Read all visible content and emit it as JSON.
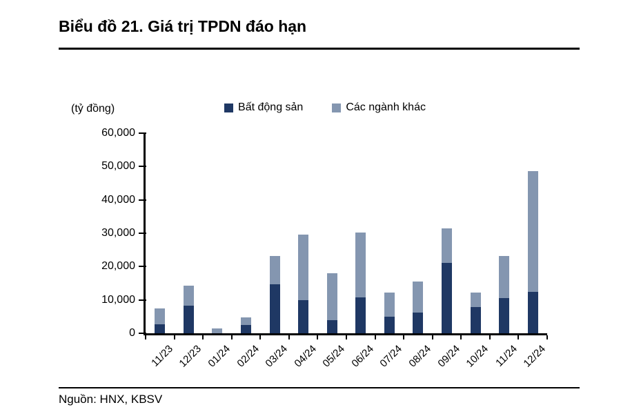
{
  "header": {
    "title": "Biểu đồ 21. Giá trị TPDN đáo hạn"
  },
  "footer": {
    "source": "Nguồn: HNX, KBSV"
  },
  "chart_data": {
    "type": "bar",
    "stacked": true,
    "title": "Biểu đồ 21. Giá trị TPDN đáo hạn",
    "unit_label": "(tỷ đồng)",
    "categories": [
      "11/23",
      "12/23",
      "01/24",
      "02/24",
      "03/24",
      "04/24",
      "05/24",
      "06/24",
      "07/24",
      "08/24",
      "09/24",
      "10/24",
      "11/24",
      "12/24"
    ],
    "series": [
      {
        "name": "Bất động sản",
        "color": "#1F3864",
        "values": [
          2600,
          8200,
          0,
          2500,
          14600,
          10000,
          3900,
          10800,
          4900,
          6300,
          21200,
          7800,
          10600,
          12400
        ]
      },
      {
        "name": "Các ngành khác",
        "color": "#8496B0",
        "values": [
          4800,
          6100,
          1500,
          2300,
          8500,
          19700,
          14200,
          19400,
          7400,
          9200,
          10200,
          4500,
          12500,
          36300
        ]
      }
    ],
    "totals": [
      7400,
      14300,
      1500,
      4800,
      23100,
      29700,
      18100,
      30200,
      12300,
      15500,
      31400,
      12300,
      23100,
      48700
    ],
    "ylim": [
      0,
      60000
    ],
    "ytick_step": 10000,
    "ytick_labels": [
      "0",
      "10,000",
      "20,000",
      "30,000",
      "40,000",
      "50,000",
      "60,000"
    ],
    "xlabel": "",
    "ylabel": "(tỷ đồng)",
    "legend_position": "top",
    "grid": false,
    "axis_color": "#000000"
  }
}
